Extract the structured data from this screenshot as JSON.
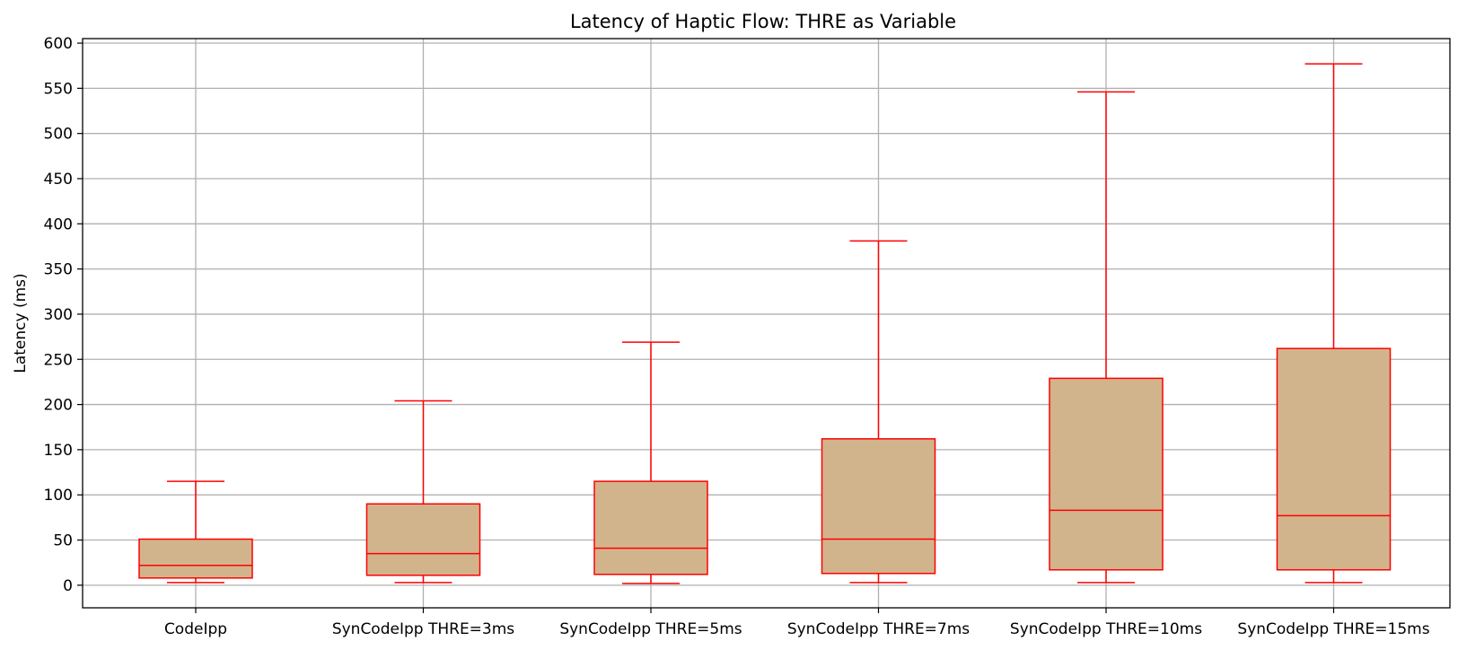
{
  "chart_data": {
    "type": "box",
    "title": "Latency of Haptic Flow: THRE as Variable",
    "xlabel": "",
    "ylabel": "Latency (ms)",
    "ylim": [
      -25,
      605
    ],
    "yticks": [
      0,
      50,
      100,
      150,
      200,
      250,
      300,
      350,
      400,
      450,
      500,
      550,
      600
    ],
    "grid": true,
    "legend": "none",
    "colors": {
      "box_fill": "#d2b48c",
      "box_edge": "#ff0000",
      "grid": "#b0b0b0",
      "axis": "#000000"
    },
    "categories": [
      "CodeIpp",
      "SynCodeIpp THRE=3ms",
      "SynCodeIpp THRE=5ms",
      "SynCodeIpp THRE=7ms",
      "SynCodeIpp THRE=10ms",
      "SynCodeIpp THRE=15ms"
    ],
    "boxes": [
      {
        "whisker_low": 3,
        "q1": 8,
        "median": 22,
        "q3": 51,
        "whisker_high": 115
      },
      {
        "whisker_low": 3,
        "q1": 11,
        "median": 35,
        "q3": 90,
        "whisker_high": 204
      },
      {
        "whisker_low": 2,
        "q1": 12,
        "median": 41,
        "q3": 115,
        "whisker_high": 269
      },
      {
        "whisker_low": 3,
        "q1": 13,
        "median": 51,
        "q3": 162,
        "whisker_high": 381
      },
      {
        "whisker_low": 3,
        "q1": 17,
        "median": 83,
        "q3": 229,
        "whisker_high": 546
      },
      {
        "whisker_low": 3,
        "q1": 17,
        "median": 77,
        "q3": 262,
        "whisker_high": 577
      }
    ]
  }
}
